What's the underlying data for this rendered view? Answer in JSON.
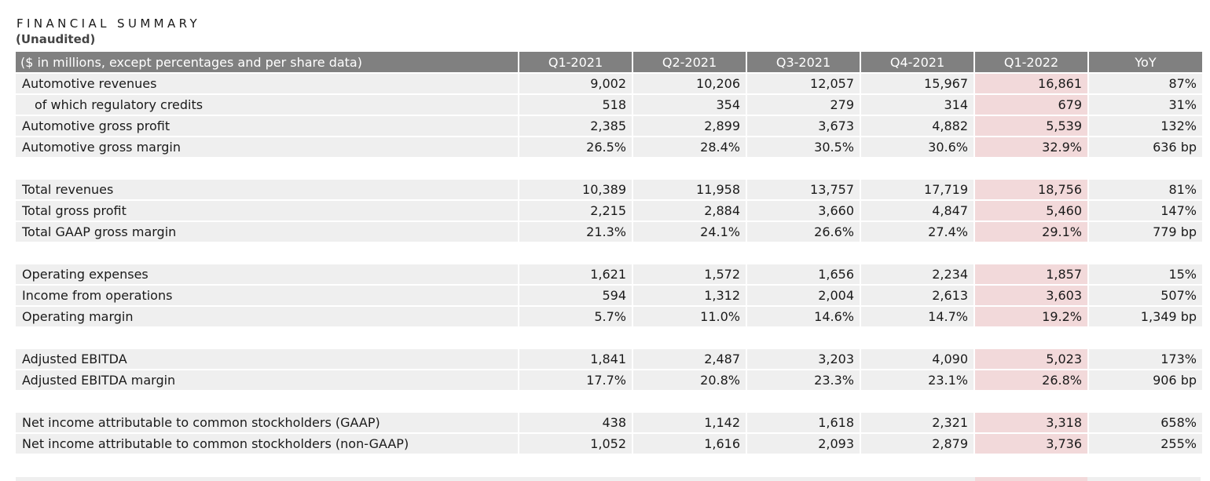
{
  "title": "FINANCIAL SUMMARY",
  "subtitle": "(Unaudited)",
  "table": {
    "header": {
      "label": "($ in millions, except percentages and per share data)",
      "columns": [
        "Q1-2021",
        "Q2-2021",
        "Q3-2021",
        "Q4-2021",
        "Q1-2022",
        "YoY"
      ]
    },
    "highlight_column": "Q1-2022",
    "highlight_color": "#f2d9da",
    "header_color": "#808080",
    "row_color": "#efefef",
    "groups": [
      {
        "rows": [
          {
            "label": "Automotive revenues",
            "indent": false,
            "values": [
              "9,002",
              "10,206",
              "12,057",
              "15,967",
              "16,861",
              "87%"
            ]
          },
          {
            "label": "of which regulatory credits",
            "indent": true,
            "values": [
              "518",
              "354",
              "279",
              "314",
              "679",
              "31%"
            ]
          },
          {
            "label": "Automotive gross profit",
            "indent": false,
            "values": [
              "2,385",
              "2,899",
              "3,673",
              "4,882",
              "5,539",
              "132%"
            ]
          },
          {
            "label": "Automotive gross margin",
            "indent": false,
            "values": [
              "26.5%",
              "28.4%",
              "30.5%",
              "30.6%",
              "32.9%",
              "636 bp"
            ]
          }
        ]
      },
      {
        "rows": [
          {
            "label": "Total revenues",
            "indent": false,
            "values": [
              "10,389",
              "11,958",
              "13,757",
              "17,719",
              "18,756",
              "81%"
            ]
          },
          {
            "label": "Total gross profit",
            "indent": false,
            "values": [
              "2,215",
              "2,884",
              "3,660",
              "4,847",
              "5,460",
              "147%"
            ]
          },
          {
            "label": "Total GAAP gross margin",
            "indent": false,
            "values": [
              "21.3%",
              "24.1%",
              "26.6%",
              "27.4%",
              "29.1%",
              "779 bp"
            ]
          }
        ]
      },
      {
        "rows": [
          {
            "label": "Operating expenses",
            "indent": false,
            "values": [
              "1,621",
              "1,572",
              "1,656",
              "2,234",
              "1,857",
              "15%"
            ]
          },
          {
            "label": "Income from operations",
            "indent": false,
            "values": [
              "594",
              "1,312",
              "2,004",
              "2,613",
              "3,603",
              "507%"
            ]
          },
          {
            "label": "Operating margin",
            "indent": false,
            "values": [
              "5.7%",
              "11.0%",
              "14.6%",
              "14.7%",
              "19.2%",
              "1,349 bp"
            ]
          }
        ]
      },
      {
        "rows": [
          {
            "label": "Adjusted EBITDA",
            "indent": false,
            "values": [
              "1,841",
              "2,487",
              "3,203",
              "4,090",
              "5,023",
              "173%"
            ]
          },
          {
            "label": "Adjusted EBITDA margin",
            "indent": false,
            "values": [
              "17.7%",
              "20.8%",
              "23.3%",
              "23.1%",
              "26.8%",
              "906 bp"
            ]
          }
        ]
      },
      {
        "rows": [
          {
            "label": "Net income attributable to common stockholders (GAAP)",
            "indent": false,
            "values": [
              "438",
              "1,142",
              "1,618",
              "2,321",
              "3,318",
              "658%"
            ]
          },
          {
            "label": "Net income attributable to common stockholders (non-GAAP)",
            "indent": false,
            "values": [
              "1,052",
              "1,616",
              "2,093",
              "2,879",
              "3,736",
              "255%"
            ]
          }
        ]
      }
    ]
  }
}
